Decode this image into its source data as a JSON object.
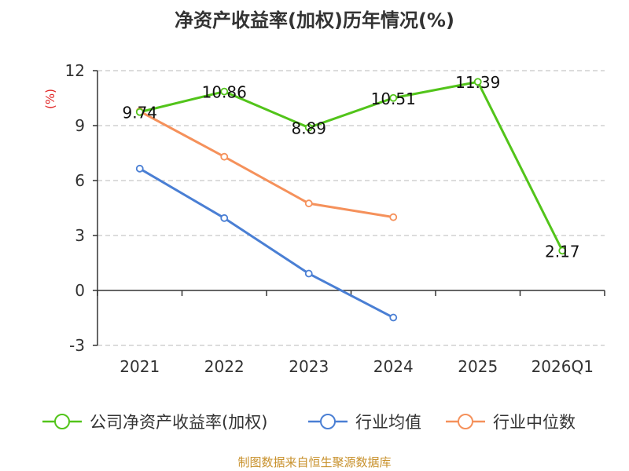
{
  "chart_data": {
    "type": "line",
    "title": "净资产收益率(加权)历年情况(%)",
    "ylabel": "(%)",
    "xlabel": "",
    "categories": [
      "2021",
      "2022",
      "2023",
      "2024",
      "2025",
      "2026Q1"
    ],
    "ylim": [
      -3,
      12
    ],
    "yticks": [
      -3,
      0,
      3,
      6,
      9,
      12
    ],
    "grid": true,
    "legend_position": "bottom",
    "series": [
      {
        "name": "公司净资产收益率(加权)",
        "color": "#52c41a",
        "values": [
          9.74,
          10.86,
          8.89,
          10.51,
          11.39,
          2.17
        ],
        "labels": [
          "9.74",
          "10.86",
          "8.89",
          "10.51",
          "11.39",
          "2.17"
        ]
      },
      {
        "name": "行业均值",
        "color": "#4a7fd4",
        "values": [
          6.65,
          3.95,
          0.92,
          -1.48,
          null,
          null
        ]
      },
      {
        "name": "行业中位数",
        "color": "#f5915b",
        "values": [
          9.78,
          7.3,
          4.75,
          4.0,
          null,
          null
        ]
      }
    ],
    "source": "制图数据来自恒生聚源数据库"
  }
}
